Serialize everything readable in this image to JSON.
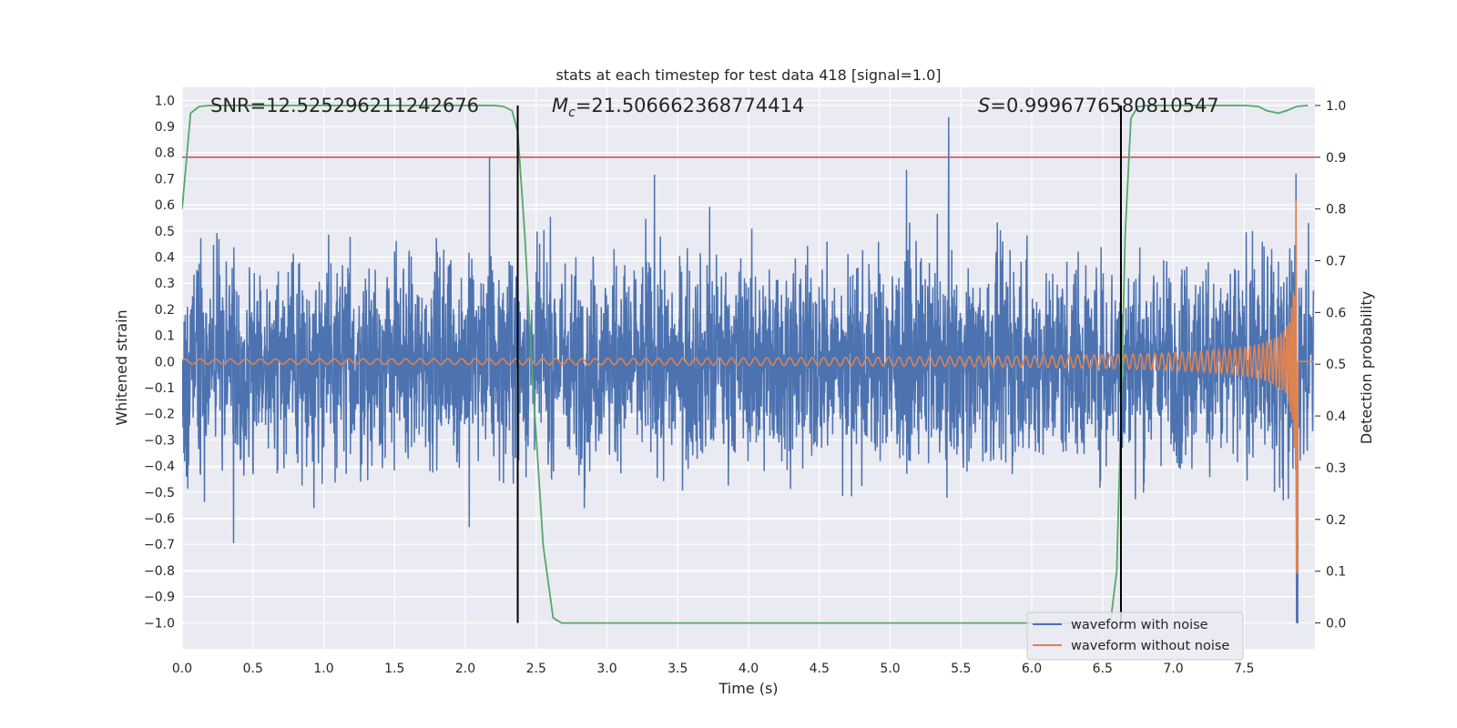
{
  "chart_data": {
    "type": "line",
    "title": "stats at each timestep for test data 418 [signal=1.0]",
    "xlabel": "Time (s)",
    "ylabel": "Whitened strain",
    "y2label": "Detection probability",
    "xlim": [
      0.0,
      8.0
    ],
    "ylim": [
      -1.1,
      1.05
    ],
    "y2lim": [
      -0.05,
      1.035
    ],
    "xticks": [
      "0.0",
      "0.5",
      "1.0",
      "1.5",
      "2.0",
      "2.5",
      "3.0",
      "3.5",
      "4.0",
      "4.5",
      "5.0",
      "5.5",
      "6.0",
      "6.5",
      "7.0",
      "7.5"
    ],
    "yticks": [
      "1.0",
      "0.9",
      "0.8",
      "0.7",
      "0.6",
      "0.5",
      "0.4",
      "0.3",
      "0.2",
      "0.1",
      "0.0",
      "−0.1",
      "−0.2",
      "−0.3",
      "−0.4",
      "−0.5",
      "−0.6",
      "−0.7",
      "−0.8",
      "−0.9",
      "−1.0"
    ],
    "y2ticks": [
      "1.0",
      "0.9",
      "0.8",
      "0.7",
      "0.6",
      "0.5",
      "0.4",
      "0.3",
      "0.2",
      "0.1",
      "0.0"
    ],
    "grid": true,
    "legend_position": "lower-right",
    "annotations": {
      "snr": "SNR=12.525296211242676",
      "mc_symbol": "M",
      "mc_subscript": "c",
      "mc_value": "=21.506662368774414",
      "s_symbol": "S",
      "s_value": "=0.9996776580810547"
    },
    "series": [
      {
        "name": "waveform with noise",
        "color": "#4c72b0",
        "axis": "left",
        "noise_amplitude": 0.3,
        "peak_value": 0.97
      },
      {
        "name": "waveform without noise",
        "color": "#dd8452",
        "axis": "left",
        "chirp_end_time": 7.87,
        "chirp_peak_amplitude": 0.85
      },
      {
        "name": "detection probability",
        "color": "#55a868",
        "axis": "right",
        "x": [
          0.0,
          0.06,
          0.12,
          0.2,
          0.5,
          1.0,
          1.5,
          2.0,
          2.2,
          2.27,
          2.33,
          2.37,
          2.42,
          2.48,
          2.55,
          2.62,
          2.68,
          3.0,
          4.0,
          5.0,
          6.0,
          6.5,
          6.56,
          6.6,
          6.63,
          6.66,
          6.7,
          6.75,
          6.83,
          7.0,
          7.3,
          7.5,
          7.6,
          7.66,
          7.74,
          7.8,
          7.87,
          7.95
        ],
        "y": [
          0.8,
          0.985,
          0.998,
          1.0,
          1.0,
          1.0,
          1.0,
          1.0,
          1.0,
          0.998,
          0.99,
          0.95,
          0.75,
          0.45,
          0.15,
          0.01,
          0.0,
          0.0,
          0.0,
          0.0,
          0.0,
          0.0,
          0.01,
          0.1,
          0.4,
          0.75,
          0.975,
          0.998,
          1.0,
          1.0,
          1.0,
          1.0,
          0.998,
          0.99,
          0.985,
          0.99,
          0.998,
          1.0
        ]
      }
    ],
    "threshold_line": {
      "value": 0.9,
      "axis": "right",
      "color": "#c44e52"
    },
    "vertical_lines": [
      2.37,
      6.63
    ]
  }
}
